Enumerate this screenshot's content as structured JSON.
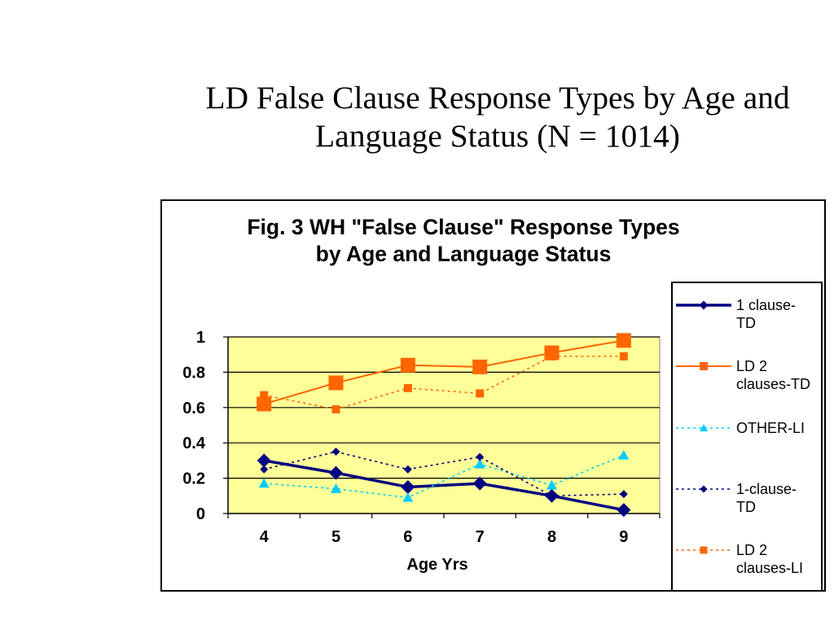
{
  "page": {
    "title": "LD False Clause Response Types by Age and Language Status (N = 1014)"
  },
  "chart_data": {
    "type": "line",
    "title": "Fig. 3 WH \"False Clause\" Response Types by Age and Language Status",
    "xlabel": "Age Yrs",
    "categories": [
      "4",
      "5",
      "6",
      "7",
      "8",
      "9"
    ],
    "ylim": [
      0,
      1
    ],
    "yticks": [
      0,
      0.2,
      0.4,
      0.6,
      0.8,
      1
    ],
    "grid": true,
    "legend": "right",
    "plot_background": "#FFFF99",
    "series": [
      {
        "name": "1 clause-TD",
        "color": "#000080",
        "line": "solid",
        "marker": "diamond",
        "values": [
          0.3,
          0.23,
          0.15,
          0.17,
          0.1,
          0.02
        ]
      },
      {
        "name": "LD 2 clauses-TD",
        "color": "#FF6600",
        "line": "solid",
        "marker": "square",
        "values": [
          0.62,
          0.74,
          0.84,
          0.83,
          0.91,
          0.98
        ]
      },
      {
        "name": "OTHER-LI",
        "color": "#00CCFF",
        "line": "dotted",
        "marker": "triangle",
        "values": [
          0.17,
          0.14,
          0.09,
          0.28,
          0.16,
          0.33
        ]
      },
      {
        "name": "1-clause-TD",
        "color": "#000080",
        "line": "dotted",
        "marker": "diamond",
        "values": [
          0.25,
          0.35,
          0.25,
          0.32,
          0.1,
          0.11
        ]
      },
      {
        "name": "LD 2 clauses-LI",
        "color": "#FF6600",
        "line": "dotted",
        "marker": "square",
        "values": [
          0.67,
          0.59,
          0.71,
          0.68,
          0.89,
          0.89
        ]
      }
    ]
  }
}
